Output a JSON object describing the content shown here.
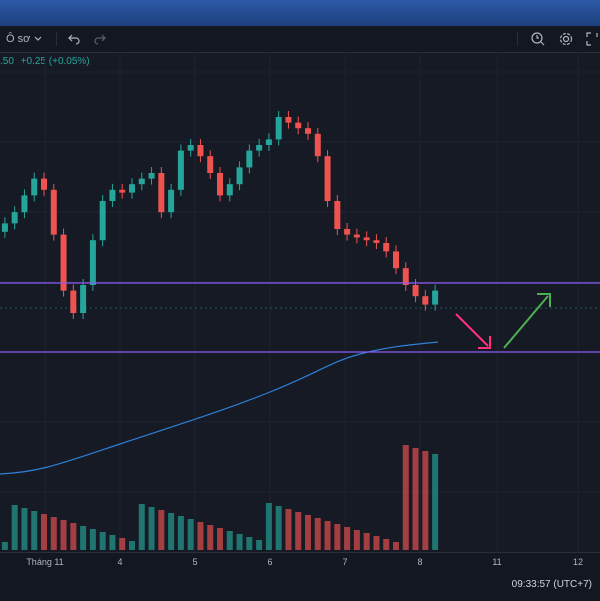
{
  "toolbar": {
    "timeframe_label": "Ô sơ",
    "undo_icon": "undo-icon",
    "redo_icon": "redo-icon",
    "alert_icon": "alert-clock-icon",
    "settings_icon": "gear-icon",
    "fullscreen_icon": "fullscreen-icon"
  },
  "price_info": {
    "last": ".50",
    "change": "+0.25 (+0.05%)"
  },
  "time_axis": {
    "ticks": [
      "Tháng 11",
      "4",
      "5",
      "6",
      "7",
      "8",
      "11",
      "12"
    ],
    "clock": "09:33:57 (UTC+7)"
  },
  "colors": {
    "up": "#26a69a",
    "down": "#ef5350",
    "ma": "#2f7fd6",
    "level": "#8b5cf6",
    "arrow_down": "#ff2f7a",
    "arrow_up": "#4caf50"
  },
  "chart_data": {
    "type": "candlestick",
    "x_ticks": [
      "Tháng 11",
      "4",
      "5",
      "6",
      "7",
      "8",
      "11",
      "12"
    ],
    "closes_relative": [
      0.62,
      0.66,
      0.72,
      0.78,
      0.74,
      0.58,
      0.38,
      0.3,
      0.4,
      0.56,
      0.7,
      0.74,
      0.73,
      0.76,
      0.78,
      0.8,
      0.66,
      0.74,
      0.88,
      0.9,
      0.86,
      0.8,
      0.72,
      0.76,
      0.82,
      0.88,
      0.9,
      0.92,
      1.0,
      0.98,
      0.96,
      0.94,
      0.86,
      0.7,
      0.6,
      0.58,
      0.57,
      0.56,
      0.55,
      0.52,
      0.46,
      0.4,
      0.36,
      0.33,
      0.38
    ],
    "horizontal_levels": [
      "upper",
      "lower"
    ],
    "annotations": [
      "arrow-down",
      "arrow-up"
    ]
  }
}
